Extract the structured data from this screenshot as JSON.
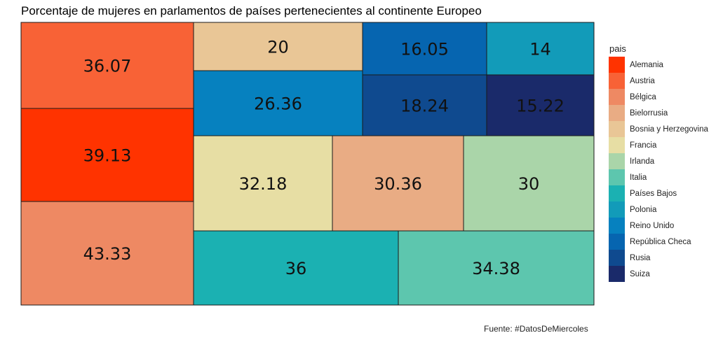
{
  "chart_data": {
    "type": "treemap",
    "title": "Porcentaje de mujeres en parlamentos de países pertenecientes al continente Europeo",
    "legend_title": "pais",
    "legend_position": "right",
    "caption": "Fuente: #DatosDeMiercoles",
    "items": [
      {
        "pais": "Alemania",
        "value": 39.13,
        "color": "#FF3300"
      },
      {
        "pais": "Austria",
        "value": 36.07,
        "color": "#F86236"
      },
      {
        "pais": "Bélgica",
        "value": 43.33,
        "color": "#EE8963"
      },
      {
        "pais": "Bielorrusia",
        "value": 30.36,
        "color": "#E9AC84"
      },
      {
        "pais": "Bosnia y Herzegovina",
        "value": 20,
        "color": "#E9C696"
      },
      {
        "pais": "Francia",
        "value": 32.18,
        "color": "#E7DEA4"
      },
      {
        "pais": "Irlanda",
        "value": 30,
        "color": "#AAD5A9"
      },
      {
        "pais": "Italia",
        "value": 34.38,
        "color": "#5DC6AE"
      },
      {
        "pais": "Países Bajos",
        "value": 36,
        "color": "#1BB1B2"
      },
      {
        "pais": "Polonia",
        "value": 14,
        "color": "#129BB9"
      },
      {
        "pais": "Reino Unido",
        "value": 26.36,
        "color": "#0681BF"
      },
      {
        "pais": "República Checa",
        "value": 16.05,
        "color": "#0665B0"
      },
      {
        "pais": "Rusia",
        "value": 18.24,
        "color": "#0F4A8F"
      },
      {
        "pais": "Suiza",
        "value": 15.22,
        "color": "#1A2A6A"
      }
    ]
  }
}
